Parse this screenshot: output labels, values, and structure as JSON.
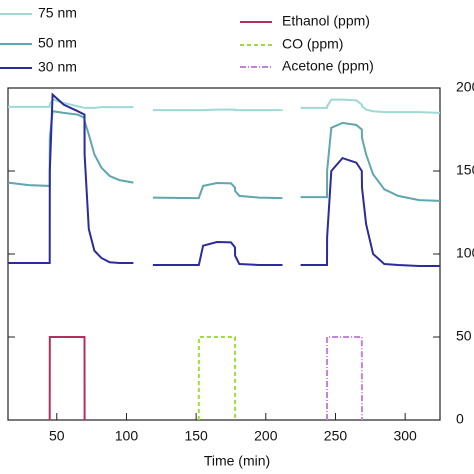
{
  "chart_data": {
    "type": "line",
    "xlabel": "Time (min)",
    "xlim": [
      15,
      325
    ],
    "xticks": [
      50,
      100,
      150,
      200,
      250,
      300
    ],
    "ylim": [
      0,
      200
    ],
    "yticks": [
      0,
      50,
      100,
      150,
      200
    ],
    "x": [
      15,
      30,
      44.9,
      45,
      47,
      55,
      65,
      69.9,
      70,
      73,
      77,
      82,
      88,
      95,
      105,
      112,
      119,
      150,
      151.9,
      152,
      155,
      165,
      175,
      177.9,
      178,
      181,
      195,
      212,
      218,
      225,
      240,
      243.9,
      244,
      247,
      255,
      265,
      268.9,
      269,
      272,
      277,
      285,
      295,
      310,
      325
    ],
    "series": [
      {
        "name": "75 nm",
        "color": "#9fd9d6",
        "dash": "none",
        "values": [
          188.6,
          188.6,
          188.6,
          190,
          193,
          191,
          189,
          188,
          188,
          188,
          188,
          188.5,
          188.5,
          188.5,
          188.5,
          null,
          186.7,
          186.7,
          186.7,
          186.7,
          186.7,
          187,
          187,
          187,
          186.7,
          186.7,
          186.7,
          186.7,
          null,
          188,
          188,
          188,
          189,
          193,
          193,
          192.5,
          190,
          189,
          187,
          186,
          185.5,
          185.5,
          185.5,
          185
        ]
      },
      {
        "name": "50 nm",
        "color": "#5fa6ae",
        "dash": "none",
        "values": [
          143,
          141.5,
          141,
          170,
          186,
          185,
          184,
          182,
          180,
          172,
          160,
          152,
          147,
          144.5,
          143,
          null,
          134,
          133.7,
          133.7,
          134,
          141,
          142.8,
          142.5,
          140,
          138,
          135,
          134,
          133.7,
          null,
          134.3,
          134.3,
          134.3,
          150,
          176,
          179,
          177.7,
          175,
          170,
          160,
          148,
          139,
          135,
          132.5,
          132
        ]
      },
      {
        "name": "30 nm",
        "color": "#2b2b9c",
        "dash": "none",
        "values": [
          94.6,
          94.6,
          94.6,
          150,
          196,
          190,
          186,
          184,
          160,
          115,
          102,
          97.6,
          95,
          94.6,
          94.6,
          null,
          93.4,
          93.4,
          93.4,
          93.5,
          105,
          107.2,
          107,
          104,
          99,
          94,
          93.4,
          93.4,
          null,
          93.4,
          93.4,
          93.4,
          110,
          150,
          157.8,
          155,
          150,
          140,
          118,
          100,
          94,
          93.4,
          92.8,
          92.8
        ]
      },
      {
        "name": "Ethanol (ppm)",
        "color": "#b0305e",
        "dash": "none",
        "values": [
          null,
          null,
          0,
          50,
          50,
          50,
          50,
          50,
          0,
          null,
          null,
          null,
          null,
          null,
          null,
          null,
          null,
          null,
          null,
          null,
          null,
          null,
          null,
          null,
          null,
          null,
          null,
          null,
          null,
          null,
          null,
          null,
          null,
          null,
          null,
          null,
          null,
          null,
          null,
          null,
          null,
          null,
          null,
          null
        ]
      },
      {
        "name": "CO (ppm)",
        "color": "#9fdc3c",
        "dash": "4,3",
        "values": [
          null,
          null,
          null,
          null,
          null,
          null,
          null,
          null,
          null,
          null,
          null,
          null,
          null,
          null,
          null,
          null,
          null,
          null,
          0,
          50,
          50,
          50,
          50,
          50,
          0,
          null,
          null,
          null,
          null,
          null,
          null,
          null,
          null,
          null,
          null,
          null,
          null,
          null,
          null,
          null,
          null,
          null,
          null,
          null
        ]
      },
      {
        "name": "Acetone (ppm)",
        "color": "#c383d6",
        "dash": "6,2,1,2",
        "values": [
          null,
          null,
          null,
          null,
          null,
          null,
          null,
          null,
          null,
          null,
          null,
          null,
          null,
          null,
          null,
          null,
          null,
          null,
          null,
          null,
          null,
          null,
          null,
          null,
          null,
          null,
          null,
          null,
          null,
          null,
          null,
          0,
          50,
          50,
          50,
          50,
          50,
          0,
          null,
          null,
          null,
          null,
          null,
          null
        ]
      }
    ]
  }
}
